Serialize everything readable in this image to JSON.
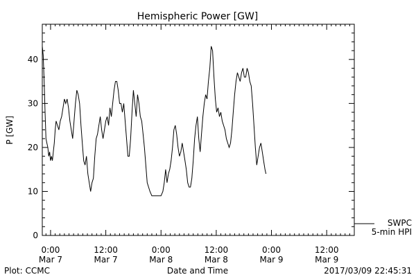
{
  "chart_data": {
    "type": "line",
    "title": "Hemispheric Power [GW]",
    "xlabel": "Date and Time",
    "ylabel": "P [GW]",
    "ylim": [
      0,
      48
    ],
    "y_ticks": [
      0,
      10,
      20,
      30,
      40
    ],
    "x_range_hours": [
      -1.8,
      66
    ],
    "x_ticks": [
      {
        "time": "0:00",
        "date": "Mar 7",
        "hour": 0
      },
      {
        "time": "12:00",
        "date": "Mar 7",
        "hour": 12
      },
      {
        "time": "0:00",
        "date": "Mar 8",
        "hour": 24
      },
      {
        "time": "12:00",
        "date": "Mar 8",
        "hour": 36
      },
      {
        "time": "0:00",
        "date": "Mar 9",
        "hour": 48
      },
      {
        "time": "12:00",
        "date": "Mar 9",
        "hour": 60
      }
    ],
    "legend": {
      "line1": "SWPC",
      "line2": "5-min HPI"
    },
    "series": [
      {
        "name": "SWPC 5-min HPI",
        "points": [
          [
            -1.8,
            43
          ],
          [
            -1.6,
            41
          ],
          [
            -1.4,
            35
          ],
          [
            -1.2,
            28
          ],
          [
            -1.0,
            22
          ],
          [
            -0.8,
            21
          ],
          [
            -0.6,
            20
          ],
          [
            -0.4,
            18
          ],
          [
            -0.2,
            19
          ],
          [
            0.0,
            17
          ],
          [
            0.2,
            18
          ],
          [
            0.4,
            17
          ],
          [
            0.6,
            19
          ],
          [
            0.8,
            21
          ],
          [
            1.0,
            24
          ],
          [
            1.2,
            26
          ],
          [
            1.5,
            25
          ],
          [
            1.8,
            24
          ],
          [
            2.1,
            26
          ],
          [
            2.4,
            27
          ],
          [
            2.7,
            29
          ],
          [
            3.0,
            31
          ],
          [
            3.3,
            30
          ],
          [
            3.6,
            31
          ],
          [
            3.9,
            29
          ],
          [
            4.2,
            26
          ],
          [
            4.5,
            24
          ],
          [
            4.8,
            22
          ],
          [
            5.1,
            26
          ],
          [
            5.4,
            30
          ],
          [
            5.7,
            33
          ],
          [
            6.0,
            32
          ],
          [
            6.3,
            30
          ],
          [
            6.6,
            25
          ],
          [
            6.9,
            21
          ],
          [
            7.2,
            17
          ],
          [
            7.5,
            16
          ],
          [
            7.8,
            18
          ],
          [
            8.1,
            14
          ],
          [
            8.4,
            12
          ],
          [
            8.7,
            10
          ],
          [
            9.0,
            12
          ],
          [
            9.3,
            13
          ],
          [
            9.6,
            18
          ],
          [
            9.9,
            22
          ],
          [
            10.2,
            23
          ],
          [
            10.5,
            25
          ],
          [
            10.8,
            27
          ],
          [
            11.1,
            24
          ],
          [
            11.4,
            22
          ],
          [
            11.7,
            24
          ],
          [
            12.0,
            26
          ],
          [
            12.3,
            27
          ],
          [
            12.6,
            25
          ],
          [
            12.9,
            29
          ],
          [
            13.2,
            27
          ],
          [
            13.5,
            30
          ],
          [
            13.8,
            33
          ],
          [
            14.1,
            35
          ],
          [
            14.4,
            35
          ],
          [
            14.7,
            33
          ],
          [
            15.0,
            30
          ],
          [
            15.3,
            30
          ],
          [
            15.6,
            28
          ],
          [
            15.9,
            30
          ],
          [
            16.2,
            26
          ],
          [
            16.5,
            22
          ],
          [
            16.8,
            18
          ],
          [
            17.1,
            18
          ],
          [
            17.4,
            22
          ],
          [
            17.7,
            28
          ],
          [
            18.0,
            33
          ],
          [
            18.3,
            30
          ],
          [
            18.6,
            27
          ],
          [
            18.9,
            32
          ],
          [
            19.2,
            30
          ],
          [
            19.5,
            27
          ],
          [
            19.8,
            26
          ],
          [
            20.1,
            23
          ],
          [
            20.4,
            20
          ],
          [
            20.7,
            16
          ],
          [
            21.0,
            12
          ],
          [
            21.3,
            11
          ],
          [
            21.6,
            10
          ],
          [
            22.0,
            9
          ],
          [
            23.0,
            9
          ],
          [
            24.0,
            9
          ],
          [
            24.4,
            10
          ],
          [
            24.7,
            12
          ],
          [
            25.0,
            15
          ],
          [
            25.3,
            12
          ],
          [
            25.6,
            14
          ],
          [
            25.9,
            15
          ],
          [
            26.2,
            17
          ],
          [
            26.5,
            20
          ],
          [
            26.8,
            24
          ],
          [
            27.1,
            25
          ],
          [
            27.4,
            23
          ],
          [
            27.7,
            20
          ],
          [
            28.0,
            18
          ],
          [
            28.3,
            19
          ],
          [
            28.6,
            21
          ],
          [
            28.9,
            19
          ],
          [
            29.2,
            17
          ],
          [
            29.5,
            15
          ],
          [
            29.8,
            12
          ],
          [
            30.1,
            11
          ],
          [
            30.4,
            11
          ],
          [
            30.7,
            13
          ],
          [
            31.0,
            17
          ],
          [
            31.3,
            22
          ],
          [
            31.6,
            25
          ],
          [
            31.9,
            27
          ],
          [
            32.2,
            22
          ],
          [
            32.5,
            19
          ],
          [
            32.8,
            23
          ],
          [
            33.1,
            27
          ],
          [
            33.4,
            30
          ],
          [
            33.7,
            32
          ],
          [
            34.0,
            31
          ],
          [
            34.3,
            35
          ],
          [
            34.6,
            38
          ],
          [
            34.9,
            43
          ],
          [
            35.2,
            42
          ],
          [
            35.5,
            36
          ],
          [
            35.8,
            31
          ],
          [
            36.1,
            28
          ],
          [
            36.4,
            29
          ],
          [
            36.7,
            27
          ],
          [
            37.0,
            28
          ],
          [
            37.3,
            26
          ],
          [
            37.6,
            25
          ],
          [
            37.9,
            24
          ],
          [
            38.2,
            22
          ],
          [
            38.5,
            21
          ],
          [
            38.8,
            20
          ],
          [
            39.1,
            21
          ],
          [
            39.4,
            24
          ],
          [
            39.7,
            28
          ],
          [
            40.0,
            32
          ],
          [
            40.3,
            35
          ],
          [
            40.6,
            37
          ],
          [
            40.9,
            36
          ],
          [
            41.2,
            35
          ],
          [
            41.5,
            37
          ],
          [
            41.8,
            38
          ],
          [
            42.1,
            36
          ],
          [
            42.4,
            36
          ],
          [
            42.7,
            38
          ],
          [
            43.0,
            37
          ],
          [
            43.3,
            35
          ],
          [
            43.6,
            34
          ],
          [
            43.9,
            30
          ],
          [
            44.2,
            25
          ],
          [
            44.5,
            20
          ],
          [
            44.8,
            16
          ],
          [
            45.1,
            18
          ],
          [
            45.4,
            20
          ],
          [
            45.7,
            21
          ],
          [
            46.0,
            19
          ],
          [
            46.3,
            17
          ],
          [
            46.6,
            15
          ],
          [
            46.8,
            14
          ]
        ]
      }
    ]
  },
  "footer": {
    "left": "Plot: CCMC",
    "right": "2017/03/09 22:45:31"
  }
}
